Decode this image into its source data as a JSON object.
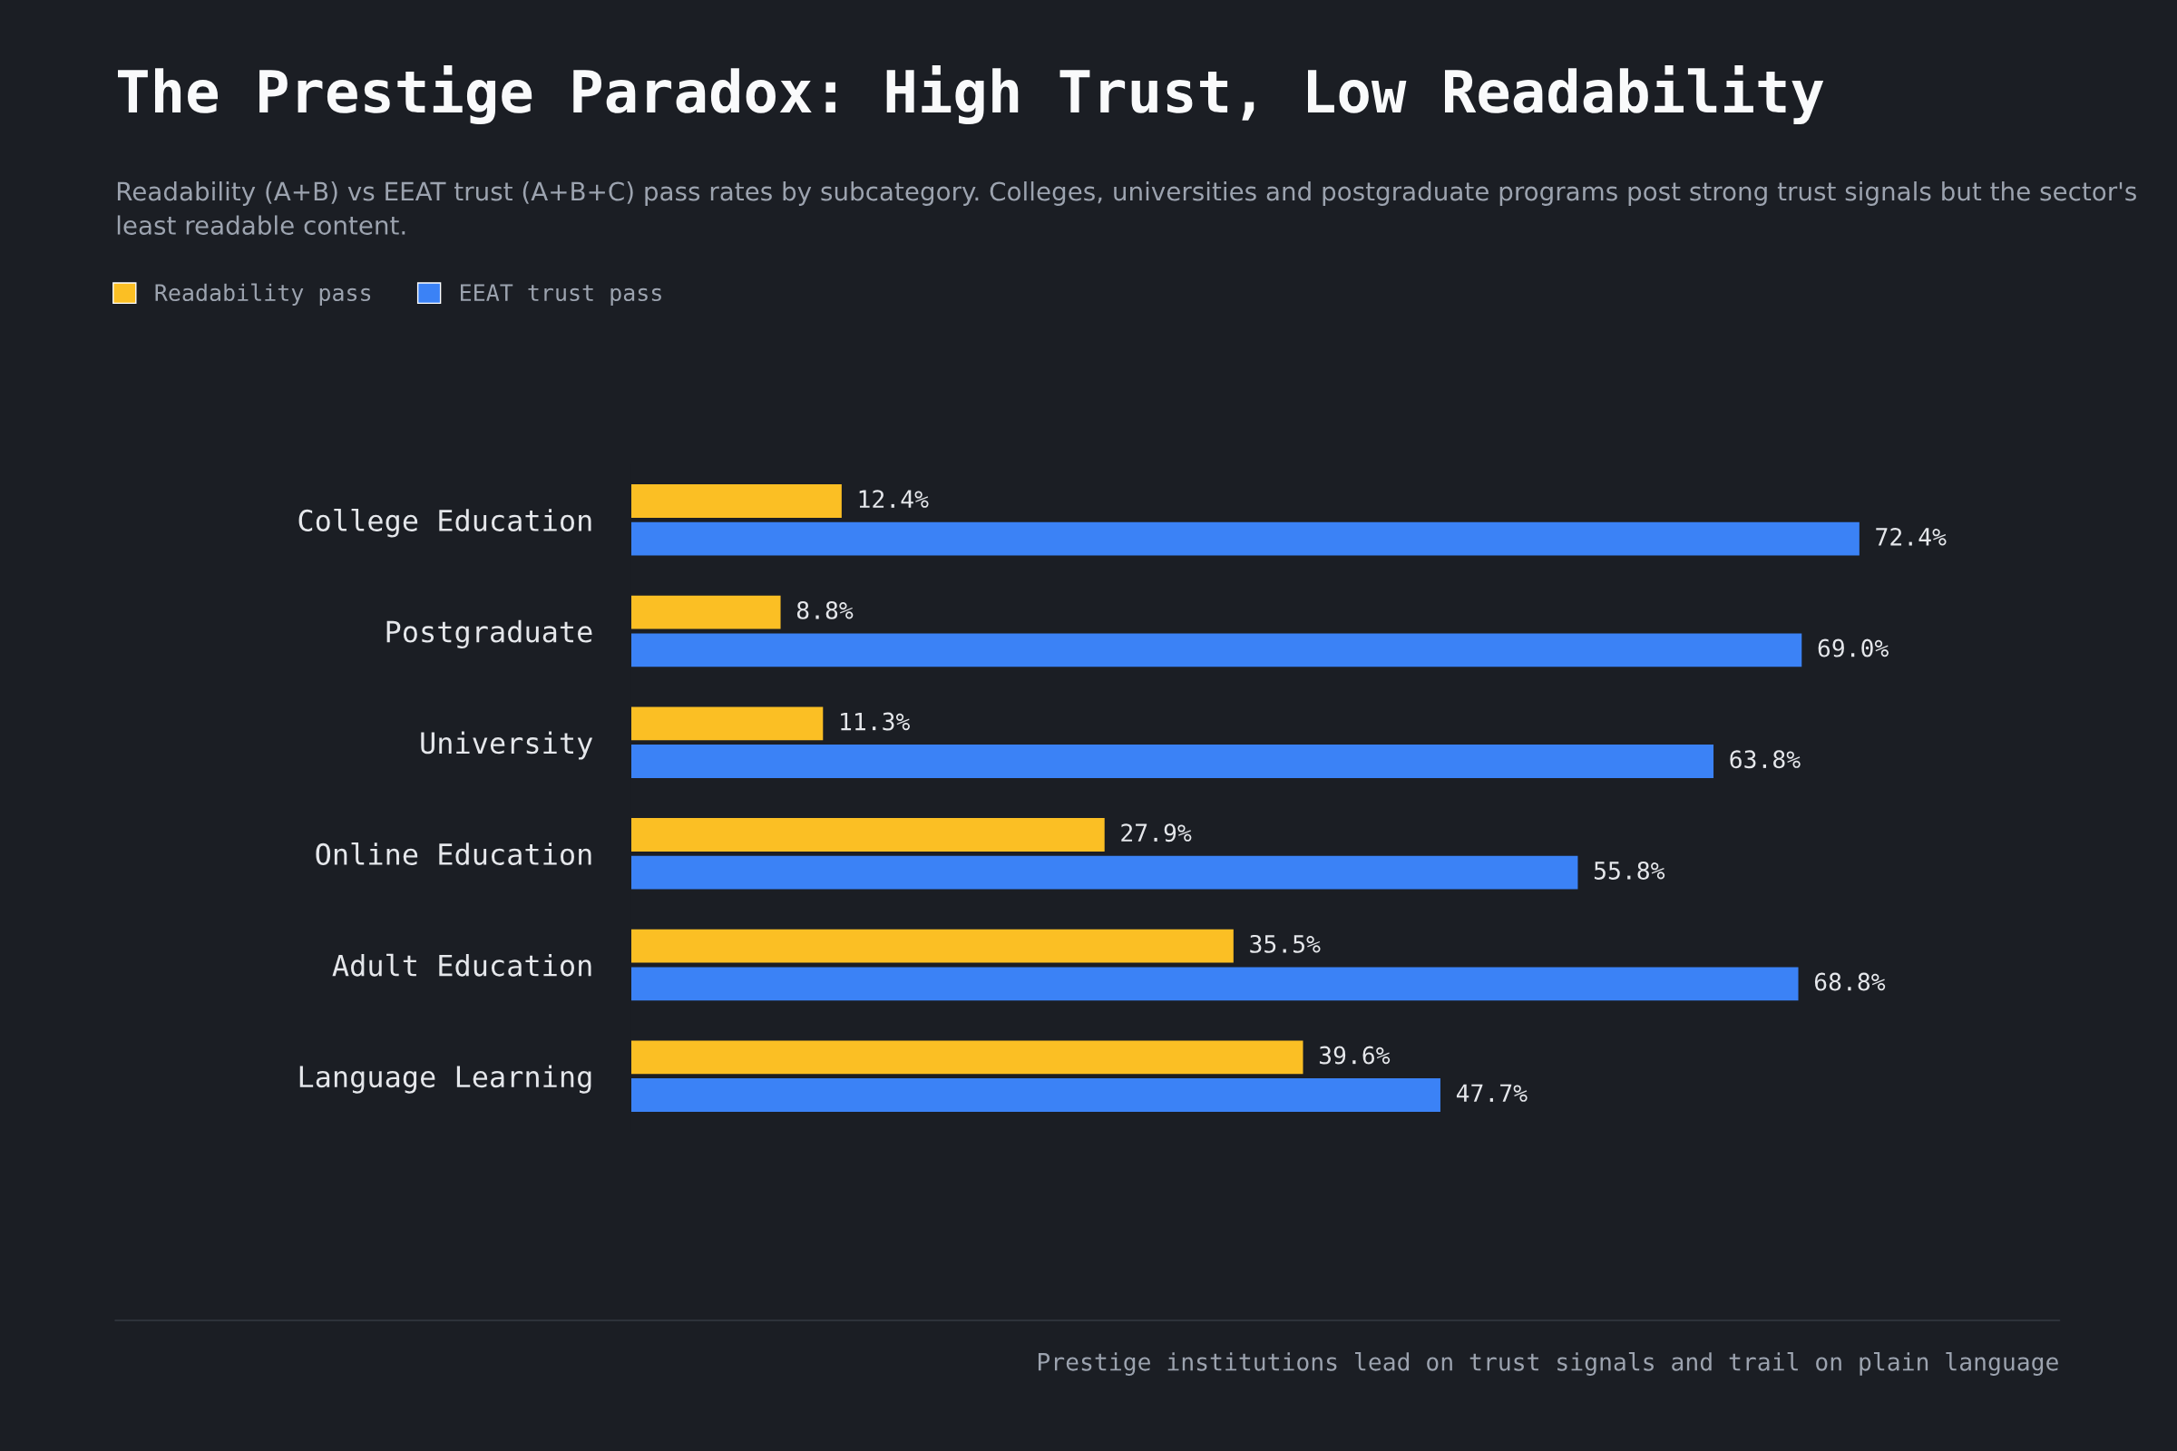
{
  "chart_data": {
    "type": "bar",
    "orientation": "horizontal",
    "title": "The Prestige Paradox: High Trust, Low Readability",
    "subtitle": "Readability (A+B) vs EEAT trust (A+B+C) pass rates by subcategory. Colleges, universities and postgraduate programs post strong trust signals but the sector's least readable content.",
    "categories": [
      "College Education",
      "Postgraduate",
      "University",
      "Online Education",
      "Adult Education",
      "Language Learning"
    ],
    "series": [
      {
        "name": "Readability pass",
        "color": "#fbbf24",
        "values": [
          12.4,
          8.8,
          11.3,
          27.9,
          35.5,
          39.6
        ],
        "value_labels": [
          "12.4%",
          "8.8%",
          "11.3%",
          "27.9%",
          "35.5%",
          "39.6%"
        ]
      },
      {
        "name": "EEAT trust pass",
        "color": "#3b82f6",
        "values": [
          72.4,
          69.0,
          63.8,
          55.8,
          68.8,
          47.7
        ],
        "value_labels": [
          "72.4%",
          "69.0%",
          "63.8%",
          "55.8%",
          "68.8%",
          "47.7%"
        ]
      }
    ],
    "legend": "top left",
    "grid": false,
    "annotations": [
      "Prestige institutions lead on trust signals and trail on plain language"
    ]
  }
}
